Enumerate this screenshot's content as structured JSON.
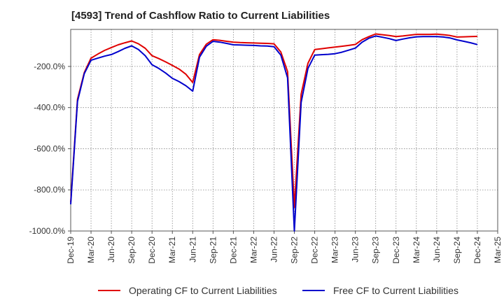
{
  "title": "[4593]  Trend of Cashflow Ratio to Current Liabilities",
  "chart_data": {
    "type": "line",
    "title": "[4593]  Trend of Cashflow Ratio to Current Liabilities",
    "ylim": [
      -1000,
      -20
    ],
    "yticks": [
      {
        "value": -200,
        "label": "-200.0%"
      },
      {
        "value": -400,
        "label": "-400.0%"
      },
      {
        "value": -600,
        "label": "-600.0%"
      },
      {
        "value": -800,
        "label": "-800.0%"
      },
      {
        "value": -1000,
        "label": "-1000.0%"
      }
    ],
    "xlim": [
      "2019-12",
      "2025-03"
    ],
    "xticks": [
      "Dec-19",
      "Mar-20",
      "Jun-20",
      "Sep-20",
      "Dec-20",
      "Mar-21",
      "Jun-21",
      "Sep-21",
      "Dec-21",
      "Mar-22",
      "Jun-22",
      "Sep-22",
      "Dec-22",
      "Mar-23",
      "Jun-23",
      "Sep-23",
      "Dec-23",
      "Mar-24",
      "Jun-24",
      "Sep-24",
      "Dec-24",
      "Mar-25"
    ],
    "grid": true,
    "legend_position": "bottom",
    "series": [
      {
        "name": "Operating CF to Current Liabilities",
        "color": "#e00000",
        "points": [
          [
            "2019-12",
            -860
          ],
          [
            "2020-01",
            -360
          ],
          [
            "2020-02",
            -230
          ],
          [
            "2020-03",
            -160
          ],
          [
            "2020-04",
            -140
          ],
          [
            "2020-05",
            -122
          ],
          [
            "2020-06",
            -108
          ],
          [
            "2020-07",
            -95
          ],
          [
            "2020-08",
            -85
          ],
          [
            "2020-09",
            -76
          ],
          [
            "2020-10",
            -90
          ],
          [
            "2020-11",
            -112
          ],
          [
            "2020-12",
            -148
          ],
          [
            "2021-01",
            -162
          ],
          [
            "2021-02",
            -178
          ],
          [
            "2021-03",
            -195
          ],
          [
            "2021-04",
            -213
          ],
          [
            "2021-05",
            -238
          ],
          [
            "2021-06",
            -278
          ],
          [
            "2021-07",
            -142
          ],
          [
            "2021-08",
            -92
          ],
          [
            "2021-09",
            -70
          ],
          [
            "2021-10",
            -73
          ],
          [
            "2021-11",
            -78
          ],
          [
            "2021-12",
            -82
          ],
          [
            "2022-01",
            -84
          ],
          [
            "2022-02",
            -85
          ],
          [
            "2022-03",
            -86
          ],
          [
            "2022-04",
            -87
          ],
          [
            "2022-05",
            -88
          ],
          [
            "2022-06",
            -90
          ],
          [
            "2022-07",
            -130
          ],
          [
            "2022-08",
            -225
          ],
          [
            "2022-09",
            -885
          ],
          [
            "2022-10",
            -335
          ],
          [
            "2022-11",
            -185
          ],
          [
            "2022-12",
            -118
          ],
          [
            "2023-01",
            -114
          ],
          [
            "2023-02",
            -110
          ],
          [
            "2023-03",
            -106
          ],
          [
            "2023-04",
            -102
          ],
          [
            "2023-05",
            -98
          ],
          [
            "2023-06",
            -93
          ],
          [
            "2023-07",
            -70
          ],
          [
            "2023-08",
            -55
          ],
          [
            "2023-09",
            -42
          ],
          [
            "2023-10",
            -46
          ],
          [
            "2023-11",
            -50
          ],
          [
            "2023-12",
            -55
          ],
          [
            "2024-01",
            -52
          ],
          [
            "2024-02",
            -48
          ],
          [
            "2024-03",
            -44
          ],
          [
            "2024-04",
            -44
          ],
          [
            "2024-05",
            -44
          ],
          [
            "2024-06",
            -43
          ],
          [
            "2024-07",
            -46
          ],
          [
            "2024-08",
            -50
          ],
          [
            "2024-09",
            -57
          ],
          [
            "2024-10",
            -56
          ],
          [
            "2024-11",
            -55
          ],
          [
            "2024-12",
            -54
          ]
        ]
      },
      {
        "name": "Free CF to Current Liabilities",
        "color": "#0000cc",
        "points": [
          [
            "2019-12",
            -870
          ],
          [
            "2020-01",
            -370
          ],
          [
            "2020-02",
            -235
          ],
          [
            "2020-03",
            -170
          ],
          [
            "2020-04",
            -160
          ],
          [
            "2020-05",
            -150
          ],
          [
            "2020-06",
            -142
          ],
          [
            "2020-07",
            -128
          ],
          [
            "2020-08",
            -112
          ],
          [
            "2020-09",
            -100
          ],
          [
            "2020-10",
            -118
          ],
          [
            "2020-11",
            -148
          ],
          [
            "2020-12",
            -192
          ],
          [
            "2021-01",
            -210
          ],
          [
            "2021-02",
            -232
          ],
          [
            "2021-03",
            -258
          ],
          [
            "2021-04",
            -274
          ],
          [
            "2021-05",
            -294
          ],
          [
            "2021-06",
            -320
          ],
          [
            "2021-07",
            -155
          ],
          [
            "2021-08",
            -102
          ],
          [
            "2021-09",
            -78
          ],
          [
            "2021-10",
            -82
          ],
          [
            "2021-11",
            -88
          ],
          [
            "2021-12",
            -95
          ],
          [
            "2022-01",
            -96
          ],
          [
            "2022-02",
            -97
          ],
          [
            "2022-03",
            -98
          ],
          [
            "2022-04",
            -100
          ],
          [
            "2022-05",
            -101
          ],
          [
            "2022-06",
            -104
          ],
          [
            "2022-07",
            -145
          ],
          [
            "2022-08",
            -255
          ],
          [
            "2022-09",
            -1000
          ],
          [
            "2022-10",
            -375
          ],
          [
            "2022-11",
            -210
          ],
          [
            "2022-12",
            -145
          ],
          [
            "2023-01",
            -143
          ],
          [
            "2023-02",
            -141
          ],
          [
            "2023-03",
            -138
          ],
          [
            "2023-04",
            -131
          ],
          [
            "2023-05",
            -121
          ],
          [
            "2023-06",
            -111
          ],
          [
            "2023-07",
            -82
          ],
          [
            "2023-08",
            -63
          ],
          [
            "2023-09",
            -52
          ],
          [
            "2023-10",
            -58
          ],
          [
            "2023-11",
            -65
          ],
          [
            "2023-12",
            -74
          ],
          [
            "2024-01",
            -67
          ],
          [
            "2024-02",
            -61
          ],
          [
            "2024-03",
            -56
          ],
          [
            "2024-04",
            -55
          ],
          [
            "2024-05",
            -55
          ],
          [
            "2024-06",
            -55
          ],
          [
            "2024-07",
            -57
          ],
          [
            "2024-08",
            -62
          ],
          [
            "2024-09",
            -71
          ],
          [
            "2024-10",
            -78
          ],
          [
            "2024-11",
            -85
          ],
          [
            "2024-12",
            -94
          ]
        ]
      }
    ]
  }
}
